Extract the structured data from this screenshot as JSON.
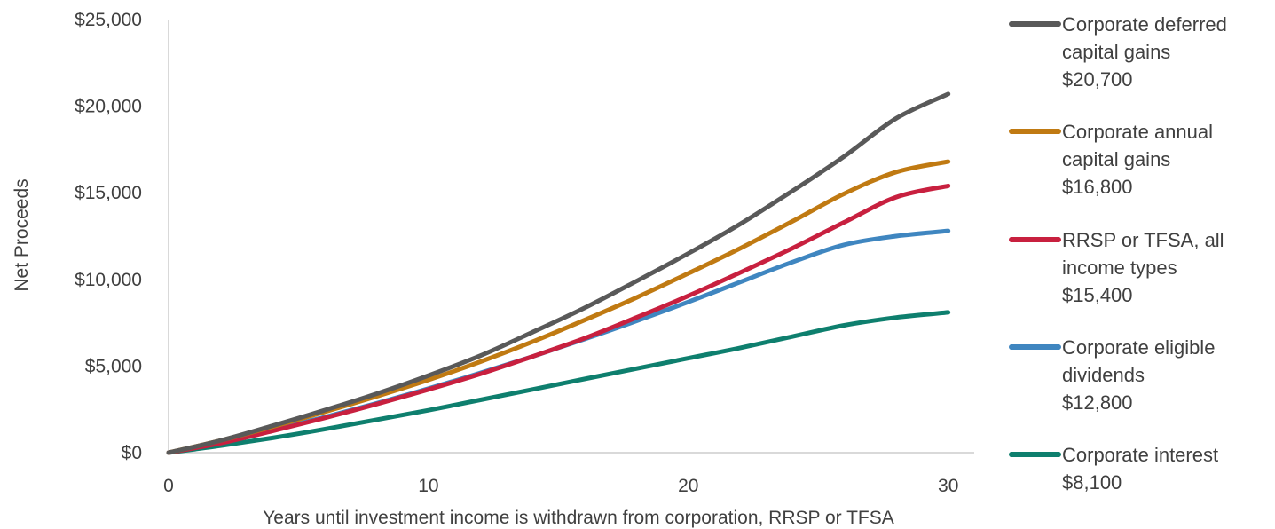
{
  "chart_data": {
    "type": "line",
    "title": "",
    "xlabel": "Years until investment income is withdrawn from corporation, RRSP or TFSA",
    "ylabel": "Net Proceeds",
    "xlim": [
      0,
      31
    ],
    "ylim": [
      0,
      25000
    ],
    "x_ticks": [
      0,
      10,
      20,
      30
    ],
    "y_ticks": [
      0,
      5000,
      10000,
      15000,
      20000,
      25000
    ],
    "y_tick_labels": [
      "$0",
      "$5,000",
      "$10,000",
      "$15,000",
      "$20,000",
      "$25,000"
    ],
    "grid": false,
    "legend_position": "right",
    "x": [
      0,
      2,
      4,
      6,
      8,
      10,
      12,
      14,
      16,
      18,
      20,
      22,
      24,
      26,
      28,
      30
    ],
    "series": [
      {
        "name": "Corporate deferred capital gains",
        "legend_lines": [
          "Corporate deferred",
          "capital gains",
          "$20,700"
        ],
        "color": "#595959",
        "values": [
          0,
          700,
          1550,
          2450,
          3400,
          4450,
          5600,
          6950,
          8350,
          9900,
          11500,
          13200,
          15100,
          17100,
          19300,
          20700
        ]
      },
      {
        "name": "Corporate annual capital gains",
        "legend_lines": [
          "Corporate annual",
          "capital gains",
          "$16,800"
        ],
        "color": "#C07A12",
        "values": [
          0,
          700,
          1500,
          2350,
          3250,
          4200,
          5250,
          6400,
          7650,
          8950,
          10350,
          11800,
          13350,
          14950,
          16200,
          16800
        ]
      },
      {
        "name": "RRSP or TFSA, all income types",
        "legend_lines": [
          "RRSP or TFSA, all",
          "income types",
          "$15,400"
        ],
        "color": "#C8203F",
        "values": [
          0,
          550,
          1250,
          2000,
          2800,
          3650,
          4550,
          5550,
          6600,
          7800,
          9050,
          10400,
          11800,
          13300,
          14750,
          15400
        ]
      },
      {
        "name": "Corporate eligible dividends",
        "legend_lines": [
          "Corporate eligible",
          "dividends",
          "$12,800"
        ],
        "color": "#3F86C0",
        "values": [
          0,
          600,
          1300,
          2050,
          2850,
          3700,
          4600,
          5550,
          6550,
          7600,
          8700,
          9850,
          11000,
          12000,
          12500,
          12800
        ]
      },
      {
        "name": "Corporate interest",
        "legend_lines": [
          "Corporate interest",
          "$8,100"
        ],
        "color": "#0E7F6E",
        "values": [
          0,
          400,
          850,
          1350,
          1900,
          2450,
          3050,
          3650,
          4250,
          4850,
          5450,
          6050,
          6700,
          7350,
          7800,
          8100
        ]
      }
    ]
  }
}
